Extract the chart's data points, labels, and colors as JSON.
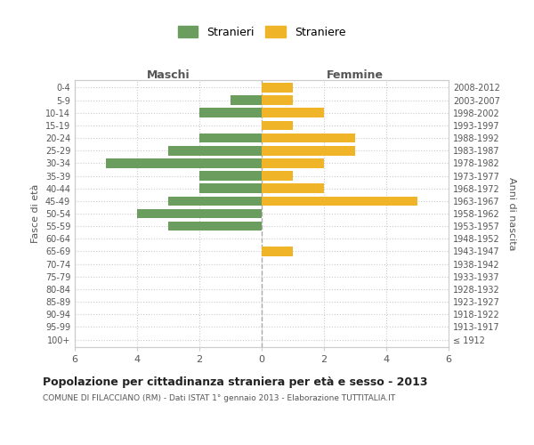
{
  "age_groups": [
    "100+",
    "95-99",
    "90-94",
    "85-89",
    "80-84",
    "75-79",
    "70-74",
    "65-69",
    "60-64",
    "55-59",
    "50-54",
    "45-49",
    "40-44",
    "35-39",
    "30-34",
    "25-29",
    "20-24",
    "15-19",
    "10-14",
    "5-9",
    "0-4"
  ],
  "birth_years": [
    "≤ 1912",
    "1913-1917",
    "1918-1922",
    "1923-1927",
    "1928-1932",
    "1933-1937",
    "1938-1942",
    "1943-1947",
    "1948-1952",
    "1953-1957",
    "1958-1962",
    "1963-1967",
    "1968-1972",
    "1973-1977",
    "1978-1982",
    "1983-1987",
    "1988-1992",
    "1993-1997",
    "1998-2002",
    "2003-2007",
    "2008-2012"
  ],
  "males": [
    0,
    0,
    0,
    0,
    0,
    0,
    0,
    0,
    0,
    3,
    4,
    3,
    2,
    2,
    5,
    3,
    2,
    0,
    2,
    1,
    0
  ],
  "females": [
    0,
    0,
    0,
    0,
    0,
    0,
    0,
    1,
    0,
    0,
    0,
    5,
    2,
    1,
    2,
    3,
    3,
    1,
    2,
    1,
    1
  ],
  "male_color": "#6b9e5e",
  "female_color": "#f0b429",
  "title": "Popolazione per cittadinanza straniera per età e sesso - 2013",
  "subtitle": "COMUNE DI FILACCIANO (RM) - Dati ISTAT 1° gennaio 2013 - Elaborazione TUTTITALIA.IT",
  "ylabel_left": "Fasce di età",
  "ylabel_right": "Anni di nascita",
  "xlabel_left": "Maschi",
  "xlabel_right": "Femmine",
  "legend_male": "Stranieri",
  "legend_female": "Straniere",
  "xlim": 6,
  "background_color": "#ffffff",
  "grid_color": "#cccccc",
  "spine_color": "#cccccc"
}
